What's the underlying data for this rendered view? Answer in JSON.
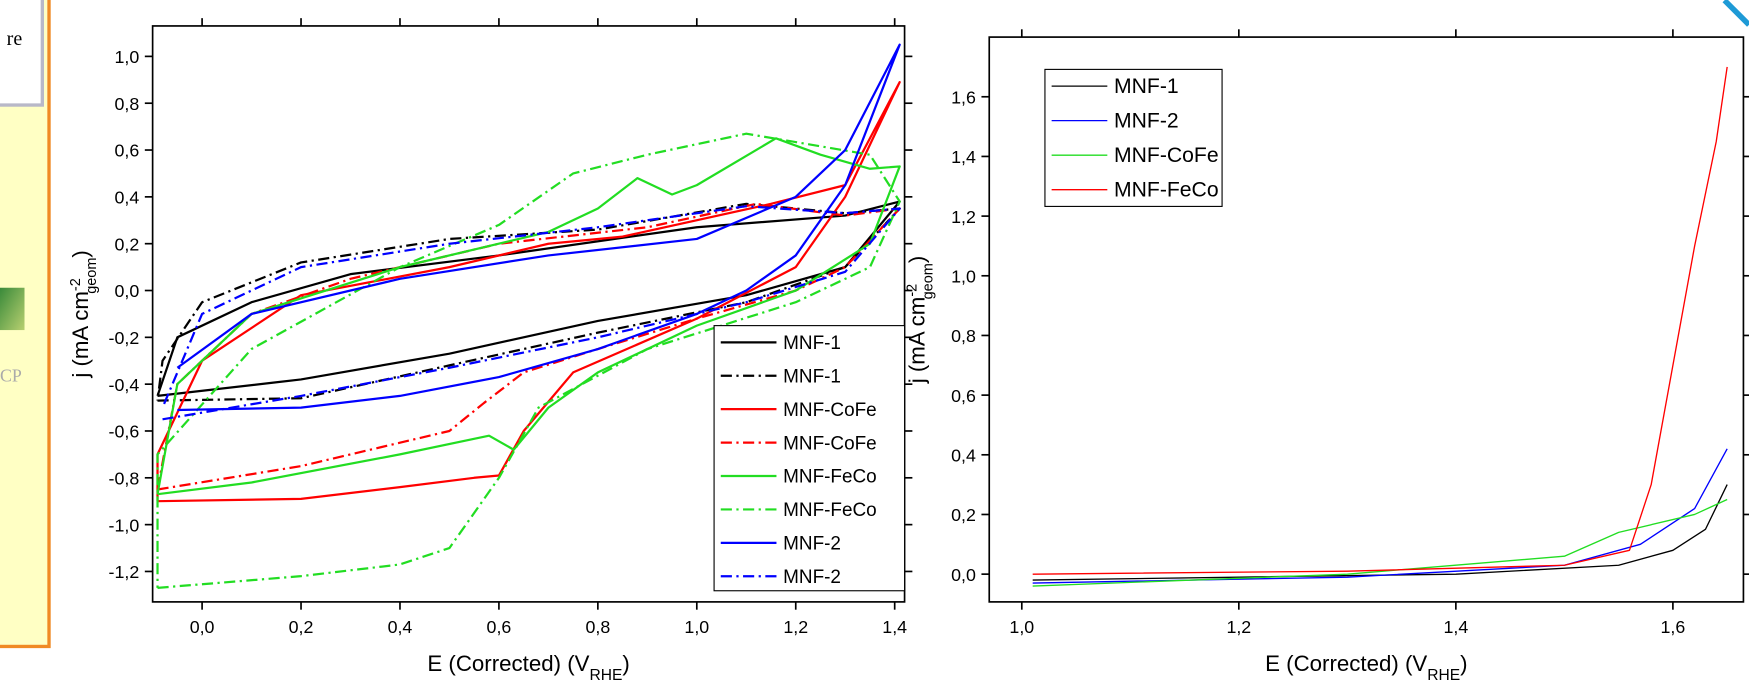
{
  "side_panel": {
    "texts": [
      "re",
      "CP"
    ]
  },
  "chart_data": [
    {
      "type": "line",
      "x_label": [
        "E (Corrected) (V",
        "RHE",
        ")"
      ],
      "y_label": [
        "j (mA cm",
        "-2",
        "geom",
        ")"
      ],
      "xlim": [
        -0.1,
        1.42
      ],
      "ylim": [
        -1.33,
        1.13
      ],
      "xticks": [
        {
          "value": 0.0,
          "label": "0,0"
        },
        {
          "value": 0.2,
          "label": "0,2"
        },
        {
          "value": 0.4,
          "label": "0,4"
        },
        {
          "value": 0.6,
          "label": "0,6"
        },
        {
          "value": 0.8,
          "label": "0,8"
        },
        {
          "value": 1.0,
          "label": "1,0"
        },
        {
          "value": 1.2,
          "label": "1,2"
        },
        {
          "value": 1.4,
          "label": "1,4"
        }
      ],
      "yticks": [
        {
          "value": -1.2,
          "label": "-1,2"
        },
        {
          "value": -1.0,
          "label": "-1,0"
        },
        {
          "value": -0.8,
          "label": "-0,8"
        },
        {
          "value": -0.6,
          "label": "-0,6"
        },
        {
          "value": -0.4,
          "label": "-0,4"
        },
        {
          "value": -0.2,
          "label": "-0,2"
        },
        {
          "value": 0.0,
          "label": "0,0"
        },
        {
          "value": 0.2,
          "label": "0,2"
        },
        {
          "value": 0.4,
          "label": "0,4"
        },
        {
          "value": 0.6,
          "label": "0,6"
        },
        {
          "value": 0.8,
          "label": "0,8"
        },
        {
          "value": 1.0,
          "label": "1,0"
        }
      ],
      "legend_position": "lower right",
      "series": [
        {
          "name": "MNF-1",
          "color": "#000000",
          "dash": "solid",
          "x": [
            -0.09,
            0.2,
            0.5,
            0.8,
            1.1,
            1.3,
            1.41,
            1.3,
            1.0,
            0.6,
            0.3,
            0.1,
            -0.05,
            -0.09
          ],
          "values": [
            -0.45,
            -0.38,
            -0.27,
            -0.13,
            -0.02,
            0.1,
            0.38,
            0.32,
            0.27,
            0.15,
            0.07,
            -0.05,
            -0.2,
            -0.45
          ]
        },
        {
          "name": "MNF-1",
          "color": "#000000",
          "dash": "dashdot",
          "x": [
            -0.09,
            0.2,
            0.5,
            0.8,
            1.1,
            1.3,
            1.41,
            1.3,
            1.1,
            0.8,
            0.5,
            0.2,
            0.0,
            -0.08,
            -0.09
          ],
          "values": [
            -0.47,
            -0.46,
            -0.32,
            -0.18,
            -0.05,
            0.1,
            0.35,
            0.33,
            0.37,
            0.26,
            0.22,
            0.12,
            -0.05,
            -0.3,
            -0.47
          ]
        },
        {
          "name": "MNF-CoFe",
          "color": "#ff0000",
          "dash": "solid",
          "x": [
            -0.09,
            0.2,
            0.4,
            0.55,
            0.6,
            0.65,
            0.75,
            1.0,
            1.2,
            1.3,
            1.41,
            1.3,
            1.15,
            0.85,
            0.7,
            0.5,
            0.2,
            0.0,
            -0.09,
            -0.09
          ],
          "values": [
            -0.9,
            -0.89,
            -0.84,
            -0.8,
            -0.79,
            -0.6,
            -0.35,
            -0.12,
            0.1,
            0.4,
            0.89,
            0.45,
            0.37,
            0.23,
            0.2,
            0.1,
            -0.02,
            -0.3,
            -0.7,
            -0.9
          ]
        },
        {
          "name": "MNF-CoFe",
          "color": "#ff0000",
          "dash": "dashdot",
          "x": [
            -0.09,
            0.2,
            0.4,
            0.5,
            0.57,
            0.65,
            0.8,
            1.0,
            1.2,
            1.3,
            1.41,
            1.3,
            1.12,
            0.9,
            0.6,
            0.3,
            0.1,
            -0.05,
            -0.09
          ],
          "values": [
            -0.85,
            -0.75,
            -0.65,
            -0.6,
            -0.48,
            -0.35,
            -0.25,
            -0.12,
            0.0,
            0.1,
            0.35,
            0.32,
            0.37,
            0.27,
            0.2,
            0.05,
            -0.1,
            -0.4,
            -0.85
          ]
        },
        {
          "name": "MNF-FeCo",
          "color": "#22dd22",
          "dash": "solid",
          "x": [
            -0.09,
            0.1,
            0.4,
            0.58,
            0.63,
            0.7,
            0.8,
            1.0,
            1.2,
            1.35,
            1.41,
            1.35,
            1.25,
            1.16,
            1.0,
            0.95,
            0.88,
            0.8,
            0.7,
            0.4,
            0.1,
            -0.05,
            -0.09
          ],
          "values": [
            -0.87,
            -0.82,
            -0.7,
            -0.62,
            -0.68,
            -0.5,
            -0.35,
            -0.15,
            0.0,
            0.2,
            0.53,
            0.52,
            0.58,
            0.65,
            0.45,
            0.41,
            0.48,
            0.35,
            0.25,
            0.1,
            -0.1,
            -0.4,
            -0.87
          ]
        },
        {
          "name": "MNF-FeCo",
          "color": "#22dd22",
          "dash": "dashdot",
          "x": [
            -0.09,
            0.2,
            0.4,
            0.5,
            0.6,
            0.68,
            0.9,
            1.2,
            1.35,
            1.41,
            1.35,
            1.1,
            0.9,
            0.75,
            0.6,
            0.4,
            0.1,
            -0.09,
            -0.09
          ],
          "values": [
            -1.27,
            -1.22,
            -1.17,
            -1.1,
            -0.8,
            -0.5,
            -0.25,
            -0.05,
            0.1,
            0.38,
            0.58,
            0.67,
            0.58,
            0.5,
            0.28,
            0.1,
            -0.25,
            -0.7,
            -1.27
          ]
        },
        {
          "name": "MNF-2",
          "color": "#0000ff",
          "dash": "solid",
          "x": [
            -0.05,
            0.2,
            0.4,
            0.6,
            0.8,
            1.0,
            1.1,
            1.2,
            1.3,
            1.41,
            1.3,
            1.2,
            1.0,
            0.7,
            0.4,
            0.1,
            -0.05
          ],
          "values": [
            -0.51,
            -0.5,
            -0.45,
            -0.37,
            -0.25,
            -0.1,
            0.0,
            0.15,
            0.45,
            1.05,
            0.6,
            0.4,
            0.22,
            0.15,
            0.05,
            -0.1,
            -0.33
          ]
        },
        {
          "name": "MNF-2",
          "color": "#0000ff",
          "dash": "dashdot",
          "x": [
            -0.08,
            0.2,
            0.5,
            0.8,
            1.1,
            1.3,
            1.41,
            1.3,
            1.1,
            0.8,
            0.5,
            0.2,
            0.0,
            -0.08
          ],
          "values": [
            -0.55,
            -0.45,
            -0.33,
            -0.2,
            -0.05,
            0.08,
            0.35,
            0.33,
            0.36,
            0.27,
            0.2,
            0.1,
            -0.1,
            -0.5
          ]
        }
      ]
    },
    {
      "type": "line",
      "x_label": [
        "E (Corrected) (V",
        "RHE",
        ")"
      ],
      "y_label": [
        "j (mA cm",
        "-2",
        "geom",
        ")"
      ],
      "xlim": [
        0.97,
        1.665
      ],
      "ylim": [
        -0.093,
        1.8
      ],
      "xticks": [
        {
          "value": 1.0,
          "label": "1,0"
        },
        {
          "value": 1.2,
          "label": "1,2"
        },
        {
          "value": 1.4,
          "label": "1,4"
        },
        {
          "value": 1.6,
          "label": "1,6"
        }
      ],
      "yticks": [
        {
          "value": 0.0,
          "label": "0,0"
        },
        {
          "value": 0.2,
          "label": "0,2"
        },
        {
          "value": 0.4,
          "label": "0,4"
        },
        {
          "value": 0.6,
          "label": "0,6"
        },
        {
          "value": 0.8,
          "label": "0,8"
        },
        {
          "value": 1.0,
          "label": "1,0"
        },
        {
          "value": 1.2,
          "label": "1,2"
        },
        {
          "value": 1.4,
          "label": "1,4"
        },
        {
          "value": 1.6,
          "label": "1,6"
        }
      ],
      "legend_position": "upper left",
      "series": [
        {
          "name": "MNF-1",
          "color": "#000000",
          "dash": "solid",
          "x": [
            1.01,
            1.2,
            1.4,
            1.55,
            1.6,
            1.63,
            1.65
          ],
          "values": [
            -0.02,
            -0.01,
            0.0,
            0.03,
            0.08,
            0.15,
            0.3
          ]
        },
        {
          "name": "MNF-2",
          "color": "#0000ff",
          "dash": "solid",
          "x": [
            1.01,
            1.3,
            1.5,
            1.57,
            1.62,
            1.65
          ],
          "values": [
            -0.03,
            -0.01,
            0.03,
            0.1,
            0.22,
            0.42
          ]
        },
        {
          "name": "MNF-CoFe",
          "color": "#22dd22",
          "dash": "solid",
          "x": [
            1.01,
            1.3,
            1.5,
            1.55,
            1.62,
            1.65
          ],
          "values": [
            -0.04,
            0.0,
            0.06,
            0.14,
            0.2,
            0.25
          ]
        },
        {
          "name": "MNF-FeCo",
          "color": "#ff0000",
          "dash": "solid",
          "x": [
            1.01,
            1.3,
            1.5,
            1.56,
            1.58,
            1.6,
            1.62,
            1.64,
            1.65
          ],
          "values": [
            0.0,
            0.01,
            0.03,
            0.08,
            0.3,
            0.7,
            1.1,
            1.45,
            1.7
          ]
        }
      ]
    }
  ]
}
